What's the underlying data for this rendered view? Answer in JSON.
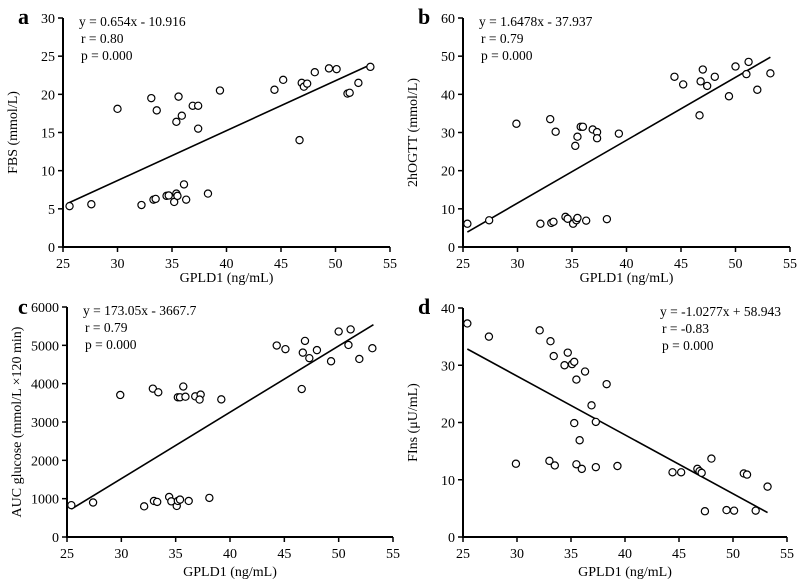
{
  "chart_data": [
    {
      "type": "scatter",
      "panel_label": "a",
      "xlabel": "GPLD1 (ng/mL)",
      "ylabel": "FBS (mmol/L)",
      "xlim": [
        25,
        55
      ],
      "ylim": [
        0,
        30
      ],
      "xticks": [
        25,
        30,
        35,
        40,
        45,
        50,
        55
      ],
      "yticks": [
        0,
        5,
        10,
        15,
        20,
        25,
        30
      ],
      "annotation": [
        "y = 0.654x - 10.916",
        "r = 0.80",
        "p = 0.000"
      ],
      "annotation_position": "top-left",
      "trendline": {
        "slope": 0.654,
        "intercept": -10.916,
        "x_range": [
          25.4,
          53.2
        ]
      },
      "points": [
        [
          25.6,
          5.35
        ],
        [
          27.6,
          5.6
        ],
        [
          30.0,
          18.1
        ],
        [
          32.2,
          5.5
        ],
        [
          33.1,
          19.5
        ],
        [
          33.3,
          6.2
        ],
        [
          33.5,
          6.3
        ],
        [
          33.6,
          17.9
        ],
        [
          34.5,
          6.7
        ],
        [
          34.7,
          6.75
        ],
        [
          35.2,
          5.9
        ],
        [
          35.4,
          16.4
        ],
        [
          35.4,
          7.0
        ],
        [
          35.5,
          6.7
        ],
        [
          35.6,
          19.7
        ],
        [
          35.9,
          17.2
        ],
        [
          36.1,
          8.2
        ],
        [
          36.3,
          6.2
        ],
        [
          36.9,
          18.5
        ],
        [
          37.4,
          18.5
        ],
        [
          37.4,
          15.5
        ],
        [
          38.3,
          7.0
        ],
        [
          39.4,
          20.5
        ],
        [
          44.4,
          20.6
        ],
        [
          45.2,
          21.9
        ],
        [
          46.7,
          14.0
        ],
        [
          46.9,
          21.5
        ],
        [
          47.1,
          21.0
        ],
        [
          47.4,
          21.4
        ],
        [
          48.1,
          22.9
        ],
        [
          49.4,
          23.4
        ],
        [
          50.1,
          23.3
        ],
        [
          51.1,
          20.1
        ],
        [
          51.3,
          20.2
        ],
        [
          52.1,
          21.5
        ],
        [
          53.2,
          23.6
        ]
      ]
    },
    {
      "type": "scatter",
      "panel_label": "b",
      "xlabel": "GPLD1 (ng/mL)",
      "ylabel": "2hOGTT (mmol/L)",
      "xlim": [
        25,
        55
      ],
      "ylim": [
        0,
        60
      ],
      "xticks": [
        25,
        30,
        35,
        40,
        45,
        50,
        55
      ],
      "yticks": [
        0,
        10,
        20,
        30,
        40,
        50,
        60
      ],
      "annotation": [
        "y = 1.6478x - 37.937",
        "r = 0.79",
        "p = 0.000"
      ],
      "annotation_position": "top-left",
      "trendline": {
        "slope": 1.6478,
        "intercept": -37.937,
        "x_range": [
          25.4,
          53.2
        ]
      },
      "points": [
        [
          25.4,
          6.1
        ],
        [
          27.4,
          7.0
        ],
        [
          29.9,
          32.3
        ],
        [
          32.1,
          6.1
        ],
        [
          33.0,
          33.5
        ],
        [
          33.1,
          6.3
        ],
        [
          33.3,
          6.6
        ],
        [
          33.5,
          30.2
        ],
        [
          34.4,
          7.9
        ],
        [
          34.6,
          7.4
        ],
        [
          35.1,
          6.1
        ],
        [
          35.3,
          26.5
        ],
        [
          35.4,
          7.0
        ],
        [
          35.5,
          7.6
        ],
        [
          35.5,
          28.9
        ],
        [
          35.8,
          31.5
        ],
        [
          36.0,
          31.5
        ],
        [
          36.3,
          6.9
        ],
        [
          36.9,
          30.8
        ],
        [
          37.3,
          30.1
        ],
        [
          37.3,
          28.5
        ],
        [
          38.2,
          7.3
        ],
        [
          39.3,
          29.7
        ],
        [
          44.4,
          44.6
        ],
        [
          45.2,
          42.6
        ],
        [
          46.7,
          34.5
        ],
        [
          46.8,
          43.4
        ],
        [
          47.0,
          46.5
        ],
        [
          47.4,
          42.2
        ],
        [
          48.1,
          44.6
        ],
        [
          49.4,
          39.5
        ],
        [
          50.0,
          47.3
        ],
        [
          51.0,
          45.3
        ],
        [
          51.2,
          48.5
        ],
        [
          52.0,
          41.2
        ],
        [
          53.2,
          45.5
        ]
      ]
    },
    {
      "type": "scatter",
      "panel_label": "c",
      "xlabel": "GPLD1 (ng/mL)",
      "ylabel": "AUC glucose (mmol/L ×120 min)",
      "xlim": [
        25,
        55
      ],
      "ylim": [
        0,
        6000
      ],
      "xticks": [
        25,
        30,
        35,
        40,
        45,
        50,
        55
      ],
      "yticks": [
        0,
        1000,
        2000,
        3000,
        4000,
        5000,
        6000
      ],
      "annotation": [
        "y = 173.05x - 3667.7",
        "r = 0.79",
        "p = 0.000"
      ],
      "annotation_position": "top-left",
      "trendline": {
        "slope": 173.05,
        "intercept": -3667.7,
        "x_range": [
          25.4,
          53.2
        ]
      },
      "points": [
        [
          25.4,
          830
        ],
        [
          27.4,
          900
        ],
        [
          29.9,
          3705
        ],
        [
          32.1,
          800
        ],
        [
          32.9,
          3870
        ],
        [
          33.0,
          940
        ],
        [
          33.3,
          915
        ],
        [
          33.4,
          3775
        ],
        [
          34.4,
          1045
        ],
        [
          34.6,
          930
        ],
        [
          35.1,
          810
        ],
        [
          35.2,
          3645
        ],
        [
          35.4,
          3645
        ],
        [
          35.2,
          940
        ],
        [
          35.4,
          975
        ],
        [
          35.7,
          3925
        ],
        [
          35.9,
          3660
        ],
        [
          36.2,
          940
        ],
        [
          36.8,
          3670
        ],
        [
          37.3,
          3715
        ],
        [
          37.2,
          3585
        ],
        [
          38.1,
          1020
        ],
        [
          39.2,
          3590
        ],
        [
          44.3,
          4995
        ],
        [
          45.1,
          4900
        ],
        [
          46.6,
          3860
        ],
        [
          46.7,
          4810
        ],
        [
          46.9,
          5115
        ],
        [
          47.3,
          4665
        ],
        [
          48.0,
          4875
        ],
        [
          49.3,
          4585
        ],
        [
          50.0,
          5360
        ],
        [
          50.9,
          5010
        ],
        [
          51.1,
          5415
        ],
        [
          51.9,
          4645
        ],
        [
          53.1,
          4925
        ]
      ]
    },
    {
      "type": "scatter",
      "panel_label": "d",
      "xlabel": "GPLD1 (ng/mL)",
      "ylabel": "FIns (μU/mL)",
      "xlim": [
        25,
        55
      ],
      "ylim": [
        0,
        40
      ],
      "xticks": [
        25,
        30,
        35,
        40,
        45,
        50,
        55
      ],
      "yticks": [
        0,
        10,
        20,
        30,
        40
      ],
      "annotation": [
        "y = -1.0277x + 58.943",
        "r = -0.83",
        "p = 0.000"
      ],
      "annotation_position": "top-right",
      "trendline": {
        "slope": -1.0277,
        "intercept": 58.943,
        "x_range": [
          25.4,
          53.2
        ]
      },
      "points": [
        [
          25.4,
          37.3
        ],
        [
          27.4,
          35.0
        ],
        [
          29.9,
          12.8
        ],
        [
          32.1,
          36.1
        ],
        [
          33.0,
          13.3
        ],
        [
          33.1,
          34.2
        ],
        [
          33.4,
          31.6
        ],
        [
          33.5,
          12.5
        ],
        [
          34.4,
          30.0
        ],
        [
          34.7,
          32.2
        ],
        [
          35.1,
          30.2
        ],
        [
          35.3,
          30.6
        ],
        [
          35.3,
          19.9
        ],
        [
          35.5,
          27.5
        ],
        [
          35.5,
          12.7
        ],
        [
          35.8,
          16.9
        ],
        [
          36.0,
          11.9
        ],
        [
          36.3,
          28.9
        ],
        [
          36.9,
          23.0
        ],
        [
          37.3,
          20.1
        ],
        [
          37.3,
          12.2
        ],
        [
          38.3,
          26.7
        ],
        [
          39.3,
          12.4
        ],
        [
          44.4,
          11.3
        ],
        [
          45.2,
          11.3
        ],
        [
          46.7,
          11.9
        ],
        [
          46.9,
          11.5
        ],
        [
          47.1,
          11.2
        ],
        [
          47.4,
          4.5
        ],
        [
          48.0,
          13.7
        ],
        [
          49.4,
          4.7
        ],
        [
          50.1,
          4.6
        ],
        [
          51.0,
          11.1
        ],
        [
          51.3,
          10.9
        ],
        [
          52.1,
          4.6
        ],
        [
          53.2,
          8.8
        ]
      ]
    }
  ]
}
